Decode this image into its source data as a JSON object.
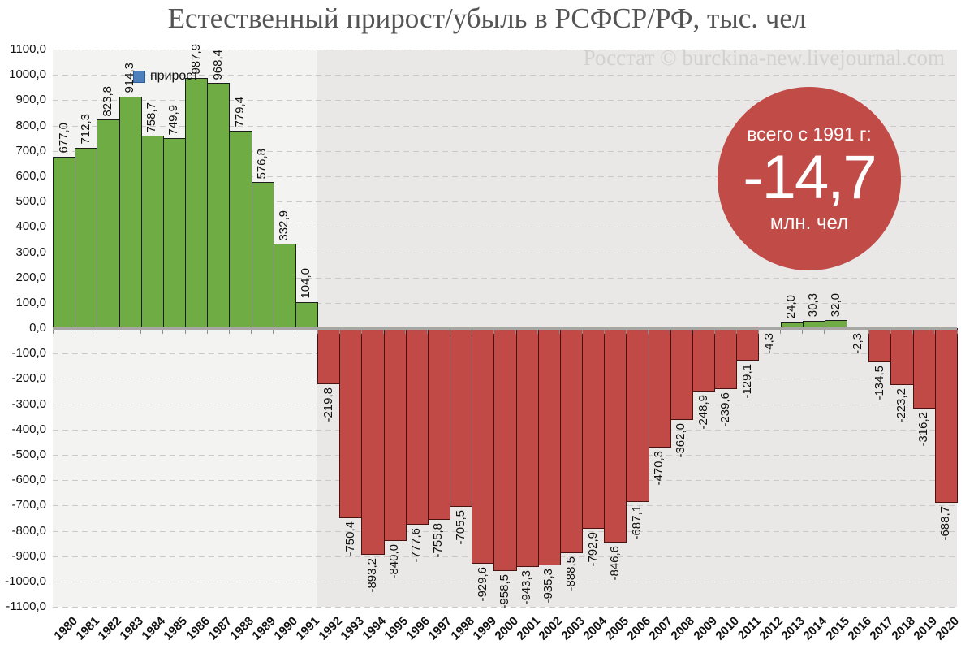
{
  "title": "Естественный прирост/убыль в РСФСР/РФ, тыс. чел",
  "watermark": "Росстат © burckina-new.livejournal.com",
  "legend": {
    "label": "прирост",
    "marker_color": "#4d80bc"
  },
  "badge": {
    "line1": "всего с 1991 г:",
    "value": "-14,7",
    "line2": "млн. чел",
    "color": "#c04b47"
  },
  "chart_data": {
    "type": "bar",
    "title": "Естественный прирост/убыль в РСФСР/РФ, тыс. чел",
    "xlabel": "",
    "ylabel": "",
    "ylim": [
      -1100,
      1100
    ],
    "ytick_step": 100,
    "grid": "dashed-horizontal",
    "legend_position": "top-left",
    "series_name": "прирост",
    "positive_color": "#6fac44",
    "positive_border": "#1c1c1c",
    "negative_color": "#c14a46",
    "negative_border": "#471210",
    "background_left_era": "#f3f3f2",
    "background_right_era": "#e9e8e7",
    "era_split_year": "1992",
    "x": [
      "1980",
      "1981",
      "1982",
      "1983",
      "1984",
      "1985",
      "1986",
      "1987",
      "1988",
      "1989",
      "1990",
      "1991",
      "1992",
      "1993",
      "1994",
      "1995",
      "1996",
      "1997",
      "1998",
      "1999",
      "2000",
      "2001",
      "2002",
      "2003",
      "2004",
      "2005",
      "2006",
      "2007",
      "2008",
      "2009",
      "2010",
      "2011",
      "2012",
      "2013",
      "2014",
      "2015",
      "2016",
      "2017",
      "2018",
      "2019",
      "2020"
    ],
    "values": [
      677.0,
      712.3,
      823.8,
      914.3,
      758.7,
      749.9,
      987.9,
      968.4,
      779.4,
      576.8,
      332.9,
      104.0,
      -219.8,
      -750.4,
      -893.2,
      -840.0,
      -777.6,
      -755.8,
      -705.5,
      -929.6,
      -958.5,
      -943.3,
      -935.3,
      -888.5,
      -792.9,
      -846.6,
      -687.1,
      -470.3,
      -362.0,
      -248.9,
      -239.6,
      -129.1,
      -4.3,
      24.0,
      30.3,
      32.0,
      -2.3,
      -134.5,
      -223.2,
      -316.2,
      -688.7
    ],
    "value_labels": [
      "677,0",
      "712,3",
      "823,8",
      "914,3",
      "758,7",
      "749,9",
      "987,9",
      "968,4",
      "779,4",
      "576,8",
      "332,9",
      "104,0",
      "-219,8",
      "-750,4",
      "-893,2",
      "-840,0",
      "-777,6",
      "-755,8",
      "-705,5",
      "-929,6",
      "-958,5",
      "-943,3",
      "-935,3",
      "-888,5",
      "-792,9",
      "-846,6",
      "-687,1",
      "-470,3",
      "-362,0",
      "-248,9",
      "-239,6",
      "-129,1",
      "-4,3",
      "24,0",
      "30,3",
      "32,0",
      "-2,3",
      "-134,5",
      "-223,2",
      "-316,2",
      "-688,7"
    ],
    "ytick_labels": [
      "1100,0",
      "1000,0",
      "900,0",
      "800,0",
      "700,0",
      "600,0",
      "500,0",
      "400,0",
      "300,0",
      "200,0",
      "100,0",
      "0,0",
      "-100,0",
      "-200,0",
      "-300,0",
      "-400,0",
      "-500,0",
      "-600,0",
      "-700,0",
      "-800,0",
      "-900,0",
      "-1000,0",
      "-1100,0"
    ]
  }
}
